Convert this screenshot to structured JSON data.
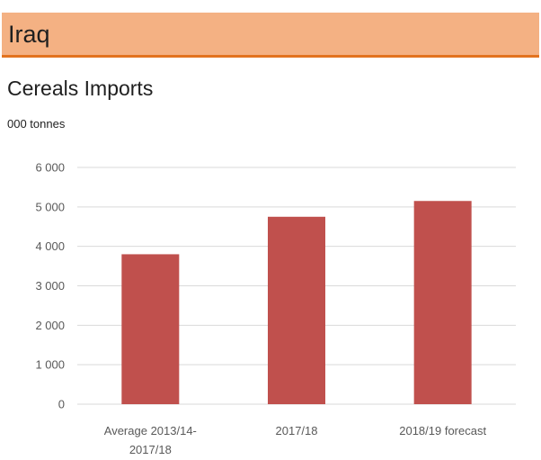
{
  "country": "Iraq",
  "colors": {
    "banner": "#f4b183",
    "banner_rule": "#e2731f",
    "bar": "#c0504d",
    "grid": "#d9d9d9"
  },
  "chart_data": {
    "type": "bar",
    "title": "Cereals Imports",
    "unit_label": "000 tonnes",
    "categories": [
      [
        "Average 2013/14-",
        "2017/18"
      ],
      [
        "2017/18"
      ],
      [
        "2018/19 forecast"
      ]
    ],
    "values": [
      3800,
      4750,
      5150
    ],
    "ylim": [
      0,
      6000
    ],
    "yticks": [
      0,
      1000,
      2000,
      3000,
      4000,
      5000,
      6000
    ],
    "ytick_labels": [
      "0",
      "1 000",
      "2 000",
      "3 000",
      "4 000",
      "5 000",
      "6 000"
    ],
    "grid": true,
    "legend": "none"
  }
}
